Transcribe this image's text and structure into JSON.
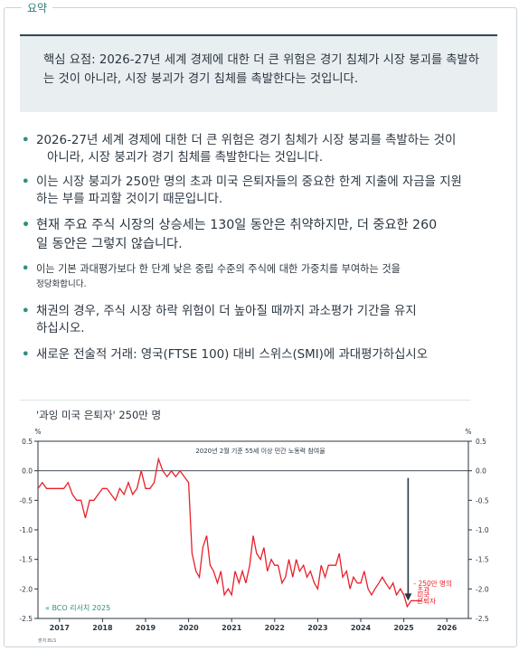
{
  "tab": {
    "label": "요약"
  },
  "summary": {
    "text": "핵심 요점: 2026-27년 세계 경제에 대한 더 큰 위험은 경기 침체가 시장 붕괴를 촉발하는 것이 아니라, 시장 붕괴가 경기 침체를 촉발한다는 것입니다."
  },
  "bullets": [
    {
      "line1": "2026-27년 세계 경제에 대한 더 큰 위험은 경기 침체가 시장 붕괴를 촉발하는 것이",
      "line2": "아니라, 시장 붕괴가 경기 침체를 촉발한다는 것입니다."
    },
    {
      "line1": "이는 시장 붕괴가 250만 명의 초과 미국 은퇴자들의 중요한 한계 지출에 자금을 지원",
      "line2": "하는 부를 파괴할 것이기 때문입니다."
    },
    {
      "line1": "현재 주요 주식 시장의 상승세는 130일 동안은 취약하지만, 더 중요한 260",
      "line2": "일 동안은 그렇지 않습니다."
    },
    {
      "line1": "이는 기본 과대평가보다 한 단계 낮은 중립 수준의 주식에 대한 가중치를 부여하는 것을",
      "line2": "정당화합니다."
    },
    {
      "line1": "채권의 경우, 주식 시장 하락 위험이 더 높아질 때까지 과소평가 기간을 유지",
      "line2": "하십시오."
    },
    {
      "line1": "새로운 전술적 거래: 영국(FTSE 100) 대비 스위스(SMI)에 과대평가하십시오",
      "line2": ""
    }
  ],
  "chart_data": {
    "type": "line",
    "title": "'과잉 미국 은퇴자' 250만 명",
    "subtitle": "2020년 2월 기준 55세 이상 민간 노동력 참여율",
    "ylabel_left": "%",
    "ylabel_right": "%",
    "ylim": [
      -2.5,
      0.5
    ],
    "yticks": [
      0.5,
      0.0,
      -0.5,
      -1.0,
      -1.5,
      -2.0,
      -2.5
    ],
    "ytick_labels": [
      "0.5",
      "0.0",
      "-0.5",
      "-1.0",
      "-1.5",
      "-2.0",
      "-2.5"
    ],
    "xlim": [
      2016.5,
      2026.5
    ],
    "xticks": [
      2017,
      2018,
      2019,
      2020,
      2021,
      2022,
      2023,
      2024,
      2025,
      2026
    ],
    "xtick_labels": [
      "2017",
      "2018",
      "2019",
      "2020",
      "2021",
      "2022",
      "2023",
      "2024",
      "2025",
      "2026"
    ],
    "source_note": "« BCO 리서치 2025",
    "footer_note": "출처:BLS",
    "annotation": "- 250만 명의 초과 미국 은퇴자",
    "annotation_lines": [
      "- 250만 명의",
      "초과",
      "미국",
      "은퇴자"
    ],
    "line_color": "#e8202a",
    "arrow_color": "#2b3640",
    "arrow_from": [
      2025.1,
      0.0
    ],
    "arrow_to": [
      2025.1,
      -2.2
    ],
    "grid": false,
    "series": [
      {
        "x": [
          2016.5,
          2016.6,
          2016.7,
          2016.8,
          2016.9,
          2017.0,
          2017.1,
          2017.2,
          2017.3,
          2017.4,
          2017.5,
          2017.6,
          2017.7,
          2017.8,
          2017.9,
          2018.0,
          2018.1,
          2018.2,
          2018.3,
          2018.4,
          2018.5,
          2018.6,
          2018.7,
          2018.8,
          2018.9,
          2019.0,
          2019.1,
          2019.2,
          2019.3,
          2019.4,
          2019.5,
          2019.6,
          2019.7,
          2019.8,
          2019.9,
          2020.0,
          2020.08,
          2020.17,
          2020.25,
          2020.33,
          2020.42,
          2020.5,
          2020.58,
          2020.67,
          2020.75,
          2020.83,
          2020.92,
          2021.0,
          2021.08,
          2021.17,
          2021.25,
          2021.33,
          2021.42,
          2021.5,
          2021.58,
          2021.67,
          2021.75,
          2021.83,
          2021.92,
          2022.0,
          2022.08,
          2022.17,
          2022.25,
          2022.33,
          2022.42,
          2022.5,
          2022.58,
          2022.67,
          2022.75,
          2022.83,
          2022.92,
          2023.0,
          2023.08,
          2023.17,
          2023.25,
          2023.33,
          2023.42,
          2023.5,
          2023.58,
          2023.67,
          2023.75,
          2023.83,
          2023.92,
          2024.0,
          2024.08,
          2024.17,
          2024.25,
          2024.33,
          2024.42,
          2024.5,
          2024.58,
          2024.67,
          2024.75,
          2024.83,
          2024.92,
          2025.0,
          2025.08,
          2025.17,
          2025.25,
          2025.33,
          2025.42
        ],
        "y": [
          -0.3,
          -0.2,
          -0.3,
          -0.3,
          -0.3,
          -0.3,
          -0.3,
          -0.2,
          -0.4,
          -0.5,
          -0.5,
          -0.8,
          -0.5,
          -0.5,
          -0.4,
          -0.3,
          -0.3,
          -0.4,
          -0.5,
          -0.3,
          -0.4,
          -0.2,
          -0.4,
          -0.3,
          0.0,
          -0.3,
          -0.3,
          -0.2,
          0.2,
          0.0,
          -0.1,
          0.0,
          -0.1,
          0.0,
          -0.1,
          -0.2,
          -1.4,
          -1.7,
          -1.8,
          -1.3,
          -1.1,
          -1.6,
          -1.7,
          -1.9,
          -1.7,
          -2.1,
          -2.0,
          -2.1,
          -1.7,
          -1.9,
          -1.7,
          -1.9,
          -1.6,
          -1.1,
          -1.4,
          -1.5,
          -1.3,
          -1.7,
          -1.5,
          -1.6,
          -1.6,
          -1.9,
          -1.8,
          -1.5,
          -1.8,
          -1.5,
          -1.7,
          -1.6,
          -1.8,
          -1.7,
          -1.9,
          -2.0,
          -1.6,
          -1.8,
          -1.6,
          -1.6,
          -1.6,
          -1.4,
          -1.8,
          -1.7,
          -2.0,
          -1.8,
          -1.9,
          -1.9,
          -1.7,
          -2.0,
          -2.1,
          -2.0,
          -1.9,
          -1.8,
          -1.9,
          -2.0,
          -1.9,
          -2.1,
          -2.0,
          -2.1,
          -2.3,
          -2.2,
          -2.2,
          -2.2,
          -2.2
        ]
      }
    ]
  }
}
